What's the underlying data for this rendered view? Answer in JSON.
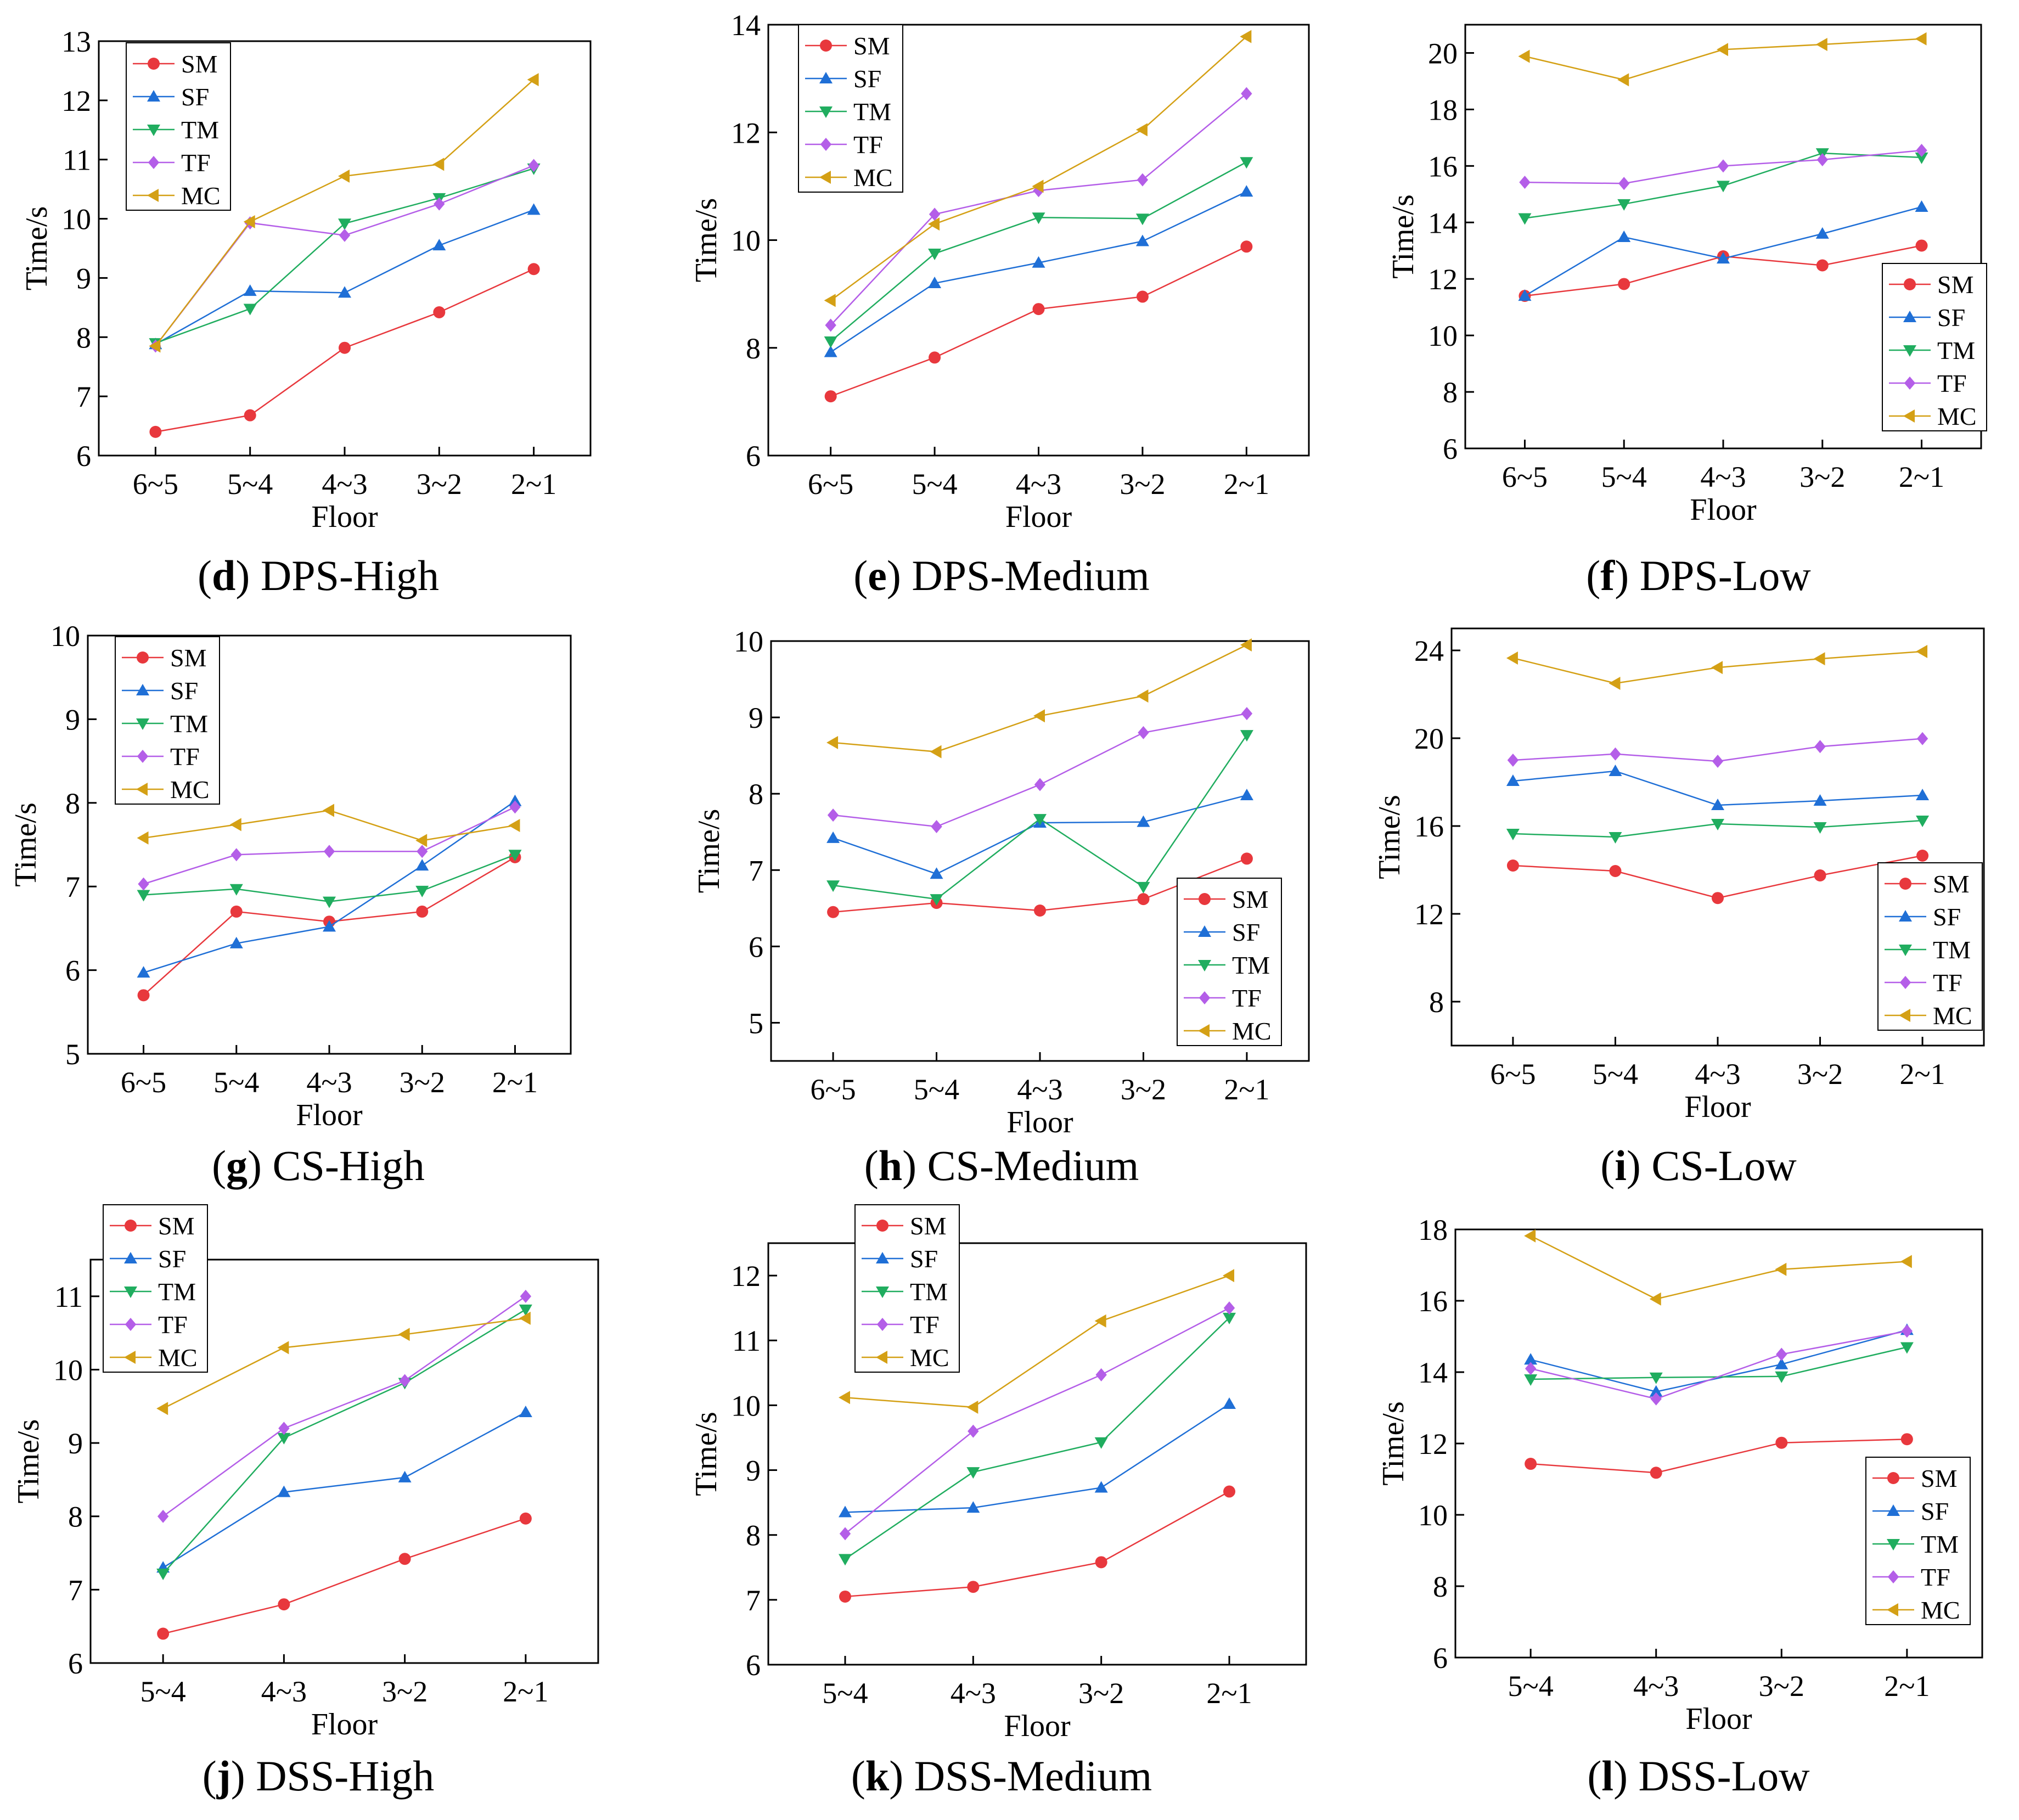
{
  "colors": {
    "SM": "#e8383d",
    "SF": "#1f6fd6",
    "TM": "#20ad5f",
    "TF": "#b45ee8",
    "MC": "#d4a015"
  },
  "markers": {
    "SM": "circle",
    "SF": "triangle-up",
    "TM": "triangle-down",
    "TF": "diamond",
    "MC": "triangle-left"
  },
  "chart_data": [
    {
      "type": "line",
      "panel_letter": "d",
      "panel_name": " DPS-High",
      "xlabel": "Floor",
      "ylabel": "Time/s",
      "categories": [
        "6~5",
        "5~4",
        "4~3",
        "3~2",
        "2~1"
      ],
      "ylim": [
        6,
        13
      ],
      "yticks": [
        "6",
        "7",
        "8",
        "9",
        "10",
        "11",
        "12",
        "13"
      ],
      "legend": "top-left",
      "series": [
        {
          "name": "SM",
          "values": [
            6.4,
            6.68,
            7.82,
            8.42,
            9.15
          ]
        },
        {
          "name": "SF",
          "values": [
            7.88,
            8.78,
            8.75,
            9.55,
            10.15
          ]
        },
        {
          "name": "TM",
          "values": [
            7.9,
            8.48,
            9.92,
            10.35,
            10.85
          ]
        },
        {
          "name": "TF",
          "values": [
            7.85,
            9.93,
            9.72,
            10.25,
            10.9
          ]
        },
        {
          "name": "MC",
          "values": [
            7.85,
            9.95,
            10.72,
            10.92,
            12.35
          ]
        }
      ]
    },
    {
      "type": "line",
      "panel_letter": "e",
      "panel_name": " DPS-Medium",
      "xlabel": "Floor",
      "ylabel": "Time/s",
      "categories": [
        "6~5",
        "5~4",
        "4~3",
        "3~2",
        "2~1"
      ],
      "ylim": [
        6,
        14
      ],
      "yticks": [
        "6",
        "8",
        "10",
        "12",
        "14"
      ],
      "legend": "top-left",
      "series": [
        {
          "name": "SM",
          "values": [
            7.1,
            7.82,
            8.72,
            8.95,
            9.88
          ]
        },
        {
          "name": "SF",
          "values": [
            7.92,
            9.2,
            9.58,
            9.98,
            10.9
          ]
        },
        {
          "name": "TM",
          "values": [
            8.12,
            9.75,
            10.42,
            10.4,
            11.45
          ]
        },
        {
          "name": "TF",
          "values": [
            8.42,
            10.48,
            10.92,
            11.12,
            12.72
          ]
        },
        {
          "name": "MC",
          "values": [
            8.88,
            10.3,
            11.0,
            12.05,
            13.78
          ]
        }
      ]
    },
    {
      "type": "line",
      "panel_letter": "f",
      "panel_name": " DPS-Low",
      "xlabel": "Floor",
      "ylabel": "Time/s",
      "categories": [
        "6~5",
        "5~4",
        "4~3",
        "3~2",
        "2~1"
      ],
      "ylim": [
        6,
        21
      ],
      "yticks": [
        "6",
        "8",
        "10",
        "12",
        "14",
        "16",
        "18",
        "20"
      ],
      "legend": "bottom-right",
      "series": [
        {
          "name": "SM",
          "values": [
            11.4,
            11.82,
            12.8,
            12.48,
            13.18
          ]
        },
        {
          "name": "SF",
          "values": [
            11.4,
            13.48,
            12.72,
            13.6,
            14.55
          ]
        },
        {
          "name": "TM",
          "values": [
            14.15,
            14.65,
            15.3,
            16.45,
            16.3
          ]
        },
        {
          "name": "TF",
          "values": [
            15.42,
            15.38,
            16.0,
            16.22,
            16.55
          ]
        },
        {
          "name": "MC",
          "values": [
            19.88,
            19.05,
            20.12,
            20.3,
            20.5
          ]
        }
      ]
    },
    {
      "type": "line",
      "panel_letter": "g",
      "panel_name": " CS-High",
      "xlabel": "Floor",
      "ylabel": "Time/s",
      "categories": [
        "6~5",
        "5~4",
        "4~3",
        "3~2",
        "2~1"
      ],
      "ylim": [
        5,
        10
      ],
      "yticks": [
        "5",
        "6",
        "7",
        "8",
        "9",
        "10"
      ],
      "legend": "top-left",
      "series": [
        {
          "name": "SM",
          "values": [
            5.7,
            6.7,
            6.58,
            6.7,
            7.35
          ]
        },
        {
          "name": "SF",
          "values": [
            5.97,
            6.32,
            6.52,
            7.25,
            8.02
          ]
        },
        {
          "name": "TM",
          "values": [
            6.9,
            6.97,
            6.82,
            6.95,
            7.38
          ]
        },
        {
          "name": "TF",
          "values": [
            7.03,
            7.38,
            7.42,
            7.42,
            7.95
          ]
        },
        {
          "name": "MC",
          "values": [
            7.58,
            7.74,
            7.91,
            7.55,
            7.73
          ]
        }
      ]
    },
    {
      "type": "line",
      "panel_letter": "h",
      "panel_name": " CS-Medium",
      "xlabel": "Floor",
      "ylabel": "Time/s",
      "categories": [
        "6~5",
        "5~4",
        "4~3",
        "3~2",
        "2~1"
      ],
      "ylim": [
        4.5,
        10
      ],
      "yticks": [
        "5",
        "6",
        "7",
        "8",
        "9",
        "10"
      ],
      "legend": "bottom-right",
      "series": [
        {
          "name": "SM",
          "values": [
            6.45,
            6.57,
            6.47,
            6.62,
            7.15
          ]
        },
        {
          "name": "SF",
          "values": [
            7.42,
            6.95,
            7.62,
            7.63,
            7.98
          ]
        },
        {
          "name": "TM",
          "values": [
            6.8,
            6.62,
            7.67,
            6.78,
            8.77
          ]
        },
        {
          "name": "TF",
          "values": [
            7.72,
            7.57,
            8.12,
            8.8,
            9.05
          ]
        },
        {
          "name": "MC",
          "values": [
            8.67,
            8.55,
            9.02,
            9.28,
            9.95
          ]
        }
      ]
    },
    {
      "type": "line",
      "panel_letter": "i",
      "panel_name": " CS-Low",
      "xlabel": "Floor",
      "ylabel": "Time/s",
      "categories": [
        "6~5",
        "5~4",
        "4~3",
        "3~2",
        "2~1"
      ],
      "ylim": [
        6,
        25
      ],
      "yticks": [
        "8",
        "12",
        "16",
        "20",
        "24"
      ],
      "legend": "bottom-right",
      "series": [
        {
          "name": "SM",
          "values": [
            14.2,
            13.95,
            12.72,
            13.75,
            14.65
          ]
        },
        {
          "name": "SF",
          "values": [
            18.05,
            18.5,
            16.95,
            17.15,
            17.4
          ]
        },
        {
          "name": "TM",
          "values": [
            15.65,
            15.5,
            16.1,
            15.95,
            16.25
          ]
        },
        {
          "name": "TF",
          "values": [
            19.0,
            19.28,
            18.95,
            19.62,
            19.98
          ]
        },
        {
          "name": "MC",
          "values": [
            23.65,
            22.5,
            23.22,
            23.62,
            23.95
          ]
        }
      ]
    },
    {
      "type": "line",
      "panel_letter": "j",
      "panel_name": " DSS-High",
      "xlabel": "Floor",
      "ylabel": "Time/s",
      "categories": [
        "5~4",
        "4~3",
        "3~2",
        "2~1"
      ],
      "ylim": [
        6,
        11.5
      ],
      "yticks": [
        "6",
        "7",
        "8",
        "9",
        "10",
        "11"
      ],
      "legend": "top-left",
      "series": [
        {
          "name": "SM",
          "values": [
            6.4,
            6.8,
            7.42,
            7.97
          ]
        },
        {
          "name": "SF",
          "values": [
            7.3,
            8.33,
            8.53,
            9.42
          ]
        },
        {
          "name": "TM",
          "values": [
            7.22,
            9.07,
            9.82,
            10.82
          ]
        },
        {
          "name": "TF",
          "values": [
            8.0,
            9.2,
            9.85,
            11.0
          ]
        },
        {
          "name": "MC",
          "values": [
            9.47,
            10.3,
            10.48,
            10.7
          ]
        }
      ]
    },
    {
      "type": "line",
      "panel_letter": "k",
      "panel_name": " DSS-Medium",
      "xlabel": "Floor",
      "ylabel": "Time/s",
      "categories": [
        "5~4",
        "4~3",
        "3~2",
        "2~1"
      ],
      "ylim": [
        6,
        12.5
      ],
      "yticks": [
        "6",
        "7",
        "8",
        "9",
        "10",
        "11",
        "12"
      ],
      "legend": "top-left",
      "series": [
        {
          "name": "SM",
          "values": [
            7.05,
            7.2,
            7.58,
            8.67
          ]
        },
        {
          "name": "SF",
          "values": [
            8.35,
            8.42,
            8.73,
            10.02
          ]
        },
        {
          "name": "TM",
          "values": [
            7.63,
            8.97,
            9.43,
            11.35
          ]
        },
        {
          "name": "TF",
          "values": [
            8.02,
            9.6,
            10.47,
            11.5
          ]
        },
        {
          "name": "MC",
          "values": [
            10.12,
            9.97,
            11.3,
            12.0
          ]
        }
      ]
    },
    {
      "type": "line",
      "panel_letter": "l",
      "panel_name": " DSS-Low",
      "xlabel": "Floor",
      "ylabel": "Time/s",
      "categories": [
        "5~4",
        "4~3",
        "3~2",
        "2~1"
      ],
      "ylim": [
        6,
        18
      ],
      "yticks": [
        "6",
        "8",
        "10",
        "12",
        "14",
        "16",
        "18"
      ],
      "legend": "bottom-right",
      "series": [
        {
          "name": "SM",
          "values": [
            11.43,
            11.18,
            12.02,
            12.12
          ]
        },
        {
          "name": "SF",
          "values": [
            14.35,
            13.45,
            14.22,
            15.18
          ]
        },
        {
          "name": "TM",
          "values": [
            13.8,
            13.85,
            13.88,
            14.7
          ]
        },
        {
          "name": "TF",
          "values": [
            14.1,
            13.25,
            14.5,
            15.15
          ]
        },
        {
          "name": "MC",
          "values": [
            17.82,
            16.05,
            16.88,
            17.1
          ]
        }
      ]
    }
  ]
}
